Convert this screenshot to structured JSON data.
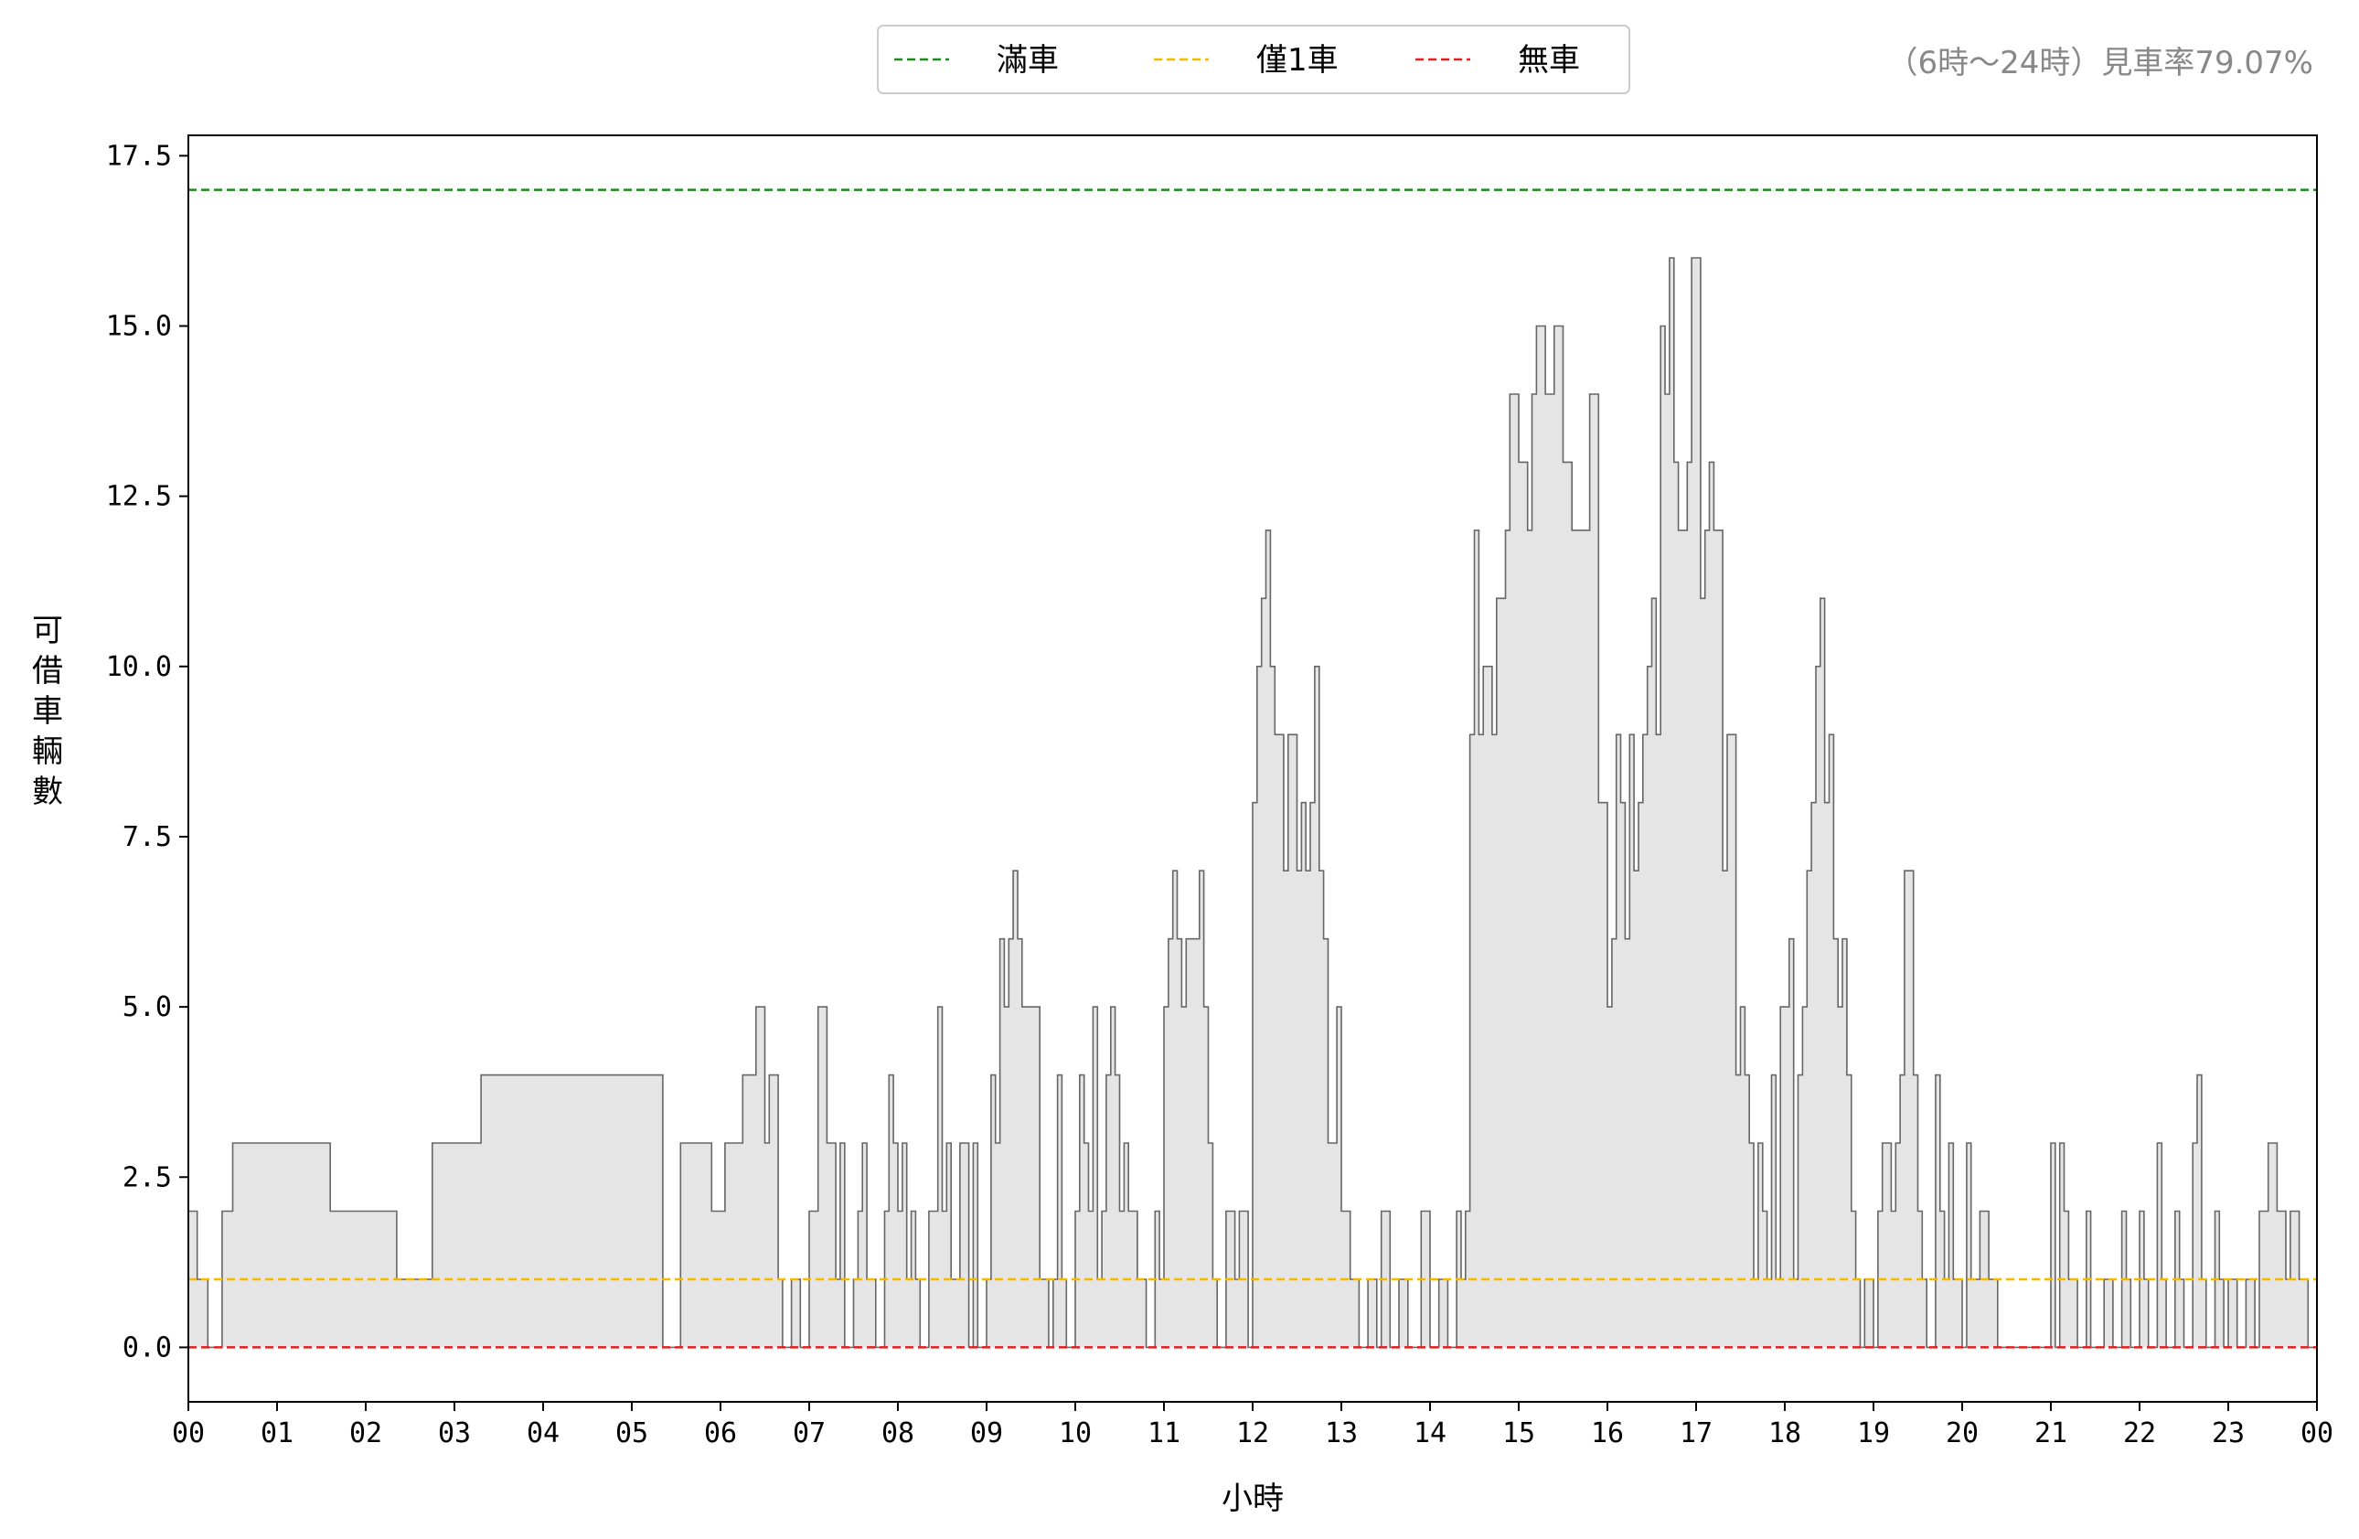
{
  "chart_data": {
    "type": "area",
    "title": "",
    "xlabel": "小時",
    "ylabel": "可借車輛數",
    "xlim": [
      0,
      24
    ],
    "ylim": [
      -0.8,
      17.8
    ],
    "x_ticks": [
      "00",
      "01",
      "02",
      "03",
      "04",
      "05",
      "06",
      "07",
      "08",
      "09",
      "10",
      "11",
      "12",
      "13",
      "14",
      "15",
      "16",
      "17",
      "18",
      "19",
      "20",
      "21",
      "22",
      "23",
      "00"
    ],
    "y_ticks": [
      {
        "value": 0,
        "label": "0.0"
      },
      {
        "value": 2.5,
        "label": "2.5"
      },
      {
        "value": 5,
        "label": "5.0"
      },
      {
        "value": 7.5,
        "label": "7.5"
      },
      {
        "value": 10,
        "label": "10.0"
      },
      {
        "value": 12.5,
        "label": "12.5"
      },
      {
        "value": 15,
        "label": "15.0"
      },
      {
        "value": 17.5,
        "label": "17.5"
      }
    ],
    "grid": false,
    "legend_position": "top-center",
    "reference_lines": [
      {
        "name": "滿車",
        "value": 17,
        "color": "#1a8a1a"
      },
      {
        "name": "僅1車",
        "value": 1,
        "color": "#f5b800"
      },
      {
        "name": "無車",
        "value": 0,
        "color": "#e02020"
      }
    ],
    "annotation": "（6時～24時）見車率79.07%",
    "series": [
      {
        "fill_color": "#e5e5e5",
        "line_color": "#666666",
        "points": [
          [
            0.0,
            2
          ],
          [
            0.1,
            1
          ],
          [
            0.22,
            0
          ],
          [
            0.38,
            2
          ],
          [
            0.5,
            3
          ],
          [
            1.6,
            2
          ],
          [
            2.35,
            1
          ],
          [
            2.75,
            3
          ],
          [
            3.3,
            4
          ],
          [
            5.35,
            0
          ],
          [
            5.55,
            3
          ],
          [
            5.9,
            2
          ],
          [
            6.05,
            3
          ],
          [
            6.25,
            4
          ],
          [
            6.4,
            5
          ],
          [
            6.5,
            3
          ],
          [
            6.55,
            4
          ],
          [
            6.65,
            1
          ],
          [
            6.7,
            0
          ],
          [
            6.8,
            1
          ],
          [
            6.9,
            0
          ],
          [
            7.0,
            2
          ],
          [
            7.1,
            5
          ],
          [
            7.2,
            3
          ],
          [
            7.3,
            1
          ],
          [
            7.35,
            3
          ],
          [
            7.4,
            0
          ],
          [
            7.5,
            1
          ],
          [
            7.55,
            2
          ],
          [
            7.6,
            3
          ],
          [
            7.65,
            1
          ],
          [
            7.75,
            0
          ],
          [
            7.85,
            2
          ],
          [
            7.9,
            4
          ],
          [
            7.95,
            3
          ],
          [
            8.0,
            2
          ],
          [
            8.05,
            3
          ],
          [
            8.1,
            1
          ],
          [
            8.15,
            2
          ],
          [
            8.2,
            1
          ],
          [
            8.25,
            0
          ],
          [
            8.35,
            2
          ],
          [
            8.45,
            5
          ],
          [
            8.5,
            2
          ],
          [
            8.55,
            3
          ],
          [
            8.6,
            1
          ],
          [
            8.7,
            3
          ],
          [
            8.8,
            0
          ],
          [
            8.85,
            3
          ],
          [
            8.9,
            0
          ],
          [
            9.0,
            1
          ],
          [
            9.05,
            4
          ],
          [
            9.1,
            3
          ],
          [
            9.15,
            6
          ],
          [
            9.2,
            5
          ],
          [
            9.25,
            6
          ],
          [
            9.3,
            7
          ],
          [
            9.35,
            6
          ],
          [
            9.4,
            5
          ],
          [
            9.5,
            5
          ],
          [
            9.6,
            1
          ],
          [
            9.7,
            0
          ],
          [
            9.75,
            1
          ],
          [
            9.8,
            4
          ],
          [
            9.85,
            1
          ],
          [
            9.9,
            0
          ],
          [
            10.0,
            2
          ],
          [
            10.05,
            4
          ],
          [
            10.1,
            3
          ],
          [
            10.15,
            2
          ],
          [
            10.2,
            5
          ],
          [
            10.25,
            1
          ],
          [
            10.3,
            2
          ],
          [
            10.35,
            4
          ],
          [
            10.4,
            5
          ],
          [
            10.45,
            4
          ],
          [
            10.5,
            2
          ],
          [
            10.55,
            3
          ],
          [
            10.6,
            2
          ],
          [
            10.7,
            1
          ],
          [
            10.8,
            0
          ],
          [
            10.9,
            2
          ],
          [
            10.95,
            1
          ],
          [
            11.0,
            5
          ],
          [
            11.05,
            6
          ],
          [
            11.1,
            7
          ],
          [
            11.15,
            6
          ],
          [
            11.2,
            5
          ],
          [
            11.25,
            6
          ],
          [
            11.4,
            7
          ],
          [
            11.45,
            5
          ],
          [
            11.5,
            3
          ],
          [
            11.55,
            1
          ],
          [
            11.6,
            0
          ],
          [
            11.7,
            2
          ],
          [
            11.8,
            1
          ],
          [
            11.85,
            2
          ],
          [
            11.95,
            0
          ],
          [
            12.0,
            8
          ],
          [
            12.05,
            10
          ],
          [
            12.1,
            11
          ],
          [
            12.15,
            12
          ],
          [
            12.2,
            10
          ],
          [
            12.25,
            9
          ],
          [
            12.35,
            7
          ],
          [
            12.4,
            9
          ],
          [
            12.5,
            7
          ],
          [
            12.55,
            8
          ],
          [
            12.6,
            7
          ],
          [
            12.65,
            8
          ],
          [
            12.7,
            10
          ],
          [
            12.75,
            7
          ],
          [
            12.8,
            6
          ],
          [
            12.85,
            3
          ],
          [
            12.95,
            5
          ],
          [
            13.0,
            2
          ],
          [
            13.1,
            1
          ],
          [
            13.2,
            0
          ],
          [
            13.3,
            1
          ],
          [
            13.4,
            0
          ],
          [
            13.45,
            2
          ],
          [
            13.55,
            0
          ],
          [
            13.65,
            1
          ],
          [
            13.75,
            0
          ],
          [
            13.9,
            2
          ],
          [
            14.0,
            0
          ],
          [
            14.1,
            1
          ],
          [
            14.2,
            0
          ],
          [
            14.3,
            2
          ],
          [
            14.35,
            1
          ],
          [
            14.4,
            2
          ],
          [
            14.45,
            9
          ],
          [
            14.5,
            12
          ],
          [
            14.55,
            9
          ],
          [
            14.6,
            10
          ],
          [
            14.7,
            9
          ],
          [
            14.75,
            11
          ],
          [
            14.85,
            12
          ],
          [
            14.9,
            14
          ],
          [
            15.0,
            13
          ],
          [
            15.1,
            12
          ],
          [
            15.15,
            14
          ],
          [
            15.2,
            15
          ],
          [
            15.3,
            14
          ],
          [
            15.4,
            15
          ],
          [
            15.5,
            13
          ],
          [
            15.6,
            12
          ],
          [
            15.8,
            14
          ],
          [
            15.9,
            8
          ],
          [
            16.0,
            5
          ],
          [
            16.05,
            6
          ],
          [
            16.1,
            9
          ],
          [
            16.15,
            8
          ],
          [
            16.2,
            6
          ],
          [
            16.25,
            9
          ],
          [
            16.3,
            7
          ],
          [
            16.35,
            8
          ],
          [
            16.4,
            9
          ],
          [
            16.45,
            10
          ],
          [
            16.5,
            11
          ],
          [
            16.55,
            9
          ],
          [
            16.6,
            15
          ],
          [
            16.65,
            14
          ],
          [
            16.7,
            16
          ],
          [
            16.75,
            13
          ],
          [
            16.8,
            12
          ],
          [
            16.9,
            13
          ],
          [
            16.95,
            16
          ],
          [
            17.05,
            11
          ],
          [
            17.1,
            12
          ],
          [
            17.15,
            13
          ],
          [
            17.2,
            12
          ],
          [
            17.3,
            7
          ],
          [
            17.35,
            9
          ],
          [
            17.45,
            4
          ],
          [
            17.5,
            5
          ],
          [
            17.55,
            4
          ],
          [
            17.6,
            3
          ],
          [
            17.65,
            1
          ],
          [
            17.7,
            3
          ],
          [
            17.75,
            2
          ],
          [
            17.8,
            1
          ],
          [
            17.85,
            4
          ],
          [
            17.9,
            1
          ],
          [
            17.95,
            5
          ],
          [
            18.05,
            6
          ],
          [
            18.1,
            1
          ],
          [
            18.15,
            4
          ],
          [
            18.2,
            5
          ],
          [
            18.25,
            7
          ],
          [
            18.3,
            8
          ],
          [
            18.35,
            10
          ],
          [
            18.4,
            11
          ],
          [
            18.45,
            8
          ],
          [
            18.5,
            9
          ],
          [
            18.55,
            6
          ],
          [
            18.6,
            5
          ],
          [
            18.65,
            6
          ],
          [
            18.7,
            4
          ],
          [
            18.75,
            2
          ],
          [
            18.8,
            1
          ],
          [
            18.85,
            0
          ],
          [
            18.9,
            1
          ],
          [
            19.0,
            0
          ],
          [
            19.05,
            2
          ],
          [
            19.1,
            3
          ],
          [
            19.2,
            2
          ],
          [
            19.25,
            3
          ],
          [
            19.3,
            4
          ],
          [
            19.35,
            7
          ],
          [
            19.45,
            4
          ],
          [
            19.5,
            2
          ],
          [
            19.55,
            1
          ],
          [
            19.6,
            0
          ],
          [
            19.7,
            4
          ],
          [
            19.75,
            2
          ],
          [
            19.8,
            1
          ],
          [
            19.85,
            3
          ],
          [
            19.9,
            1
          ],
          [
            20.0,
            0
          ],
          [
            20.05,
            3
          ],
          [
            20.1,
            1
          ],
          [
            20.2,
            2
          ],
          [
            20.3,
            1
          ],
          [
            20.4,
            0
          ],
          [
            21.0,
            3
          ],
          [
            21.05,
            0
          ],
          [
            21.1,
            3
          ],
          [
            21.15,
            2
          ],
          [
            21.2,
            1
          ],
          [
            21.3,
            0
          ],
          [
            21.4,
            2
          ],
          [
            21.45,
            0
          ],
          [
            21.6,
            1
          ],
          [
            21.7,
            0
          ],
          [
            21.8,
            2
          ],
          [
            21.85,
            1
          ],
          [
            21.9,
            0
          ],
          [
            22.0,
            2
          ],
          [
            22.05,
            1
          ],
          [
            22.1,
            0
          ],
          [
            22.2,
            3
          ],
          [
            22.25,
            1
          ],
          [
            22.3,
            0
          ],
          [
            22.4,
            2
          ],
          [
            22.45,
            1
          ],
          [
            22.5,
            0
          ],
          [
            22.6,
            3
          ],
          [
            22.65,
            4
          ],
          [
            22.7,
            1
          ],
          [
            22.75,
            0
          ],
          [
            22.85,
            2
          ],
          [
            22.9,
            1
          ],
          [
            22.95,
            0
          ],
          [
            23.0,
            1
          ],
          [
            23.1,
            0
          ],
          [
            23.2,
            1
          ],
          [
            23.3,
            0
          ],
          [
            23.35,
            2
          ],
          [
            23.45,
            3
          ],
          [
            23.55,
            2
          ],
          [
            23.65,
            1
          ],
          [
            23.7,
            2
          ],
          [
            23.8,
            1
          ],
          [
            23.9,
            0
          ],
          [
            24.0,
            0
          ]
        ]
      }
    ]
  }
}
